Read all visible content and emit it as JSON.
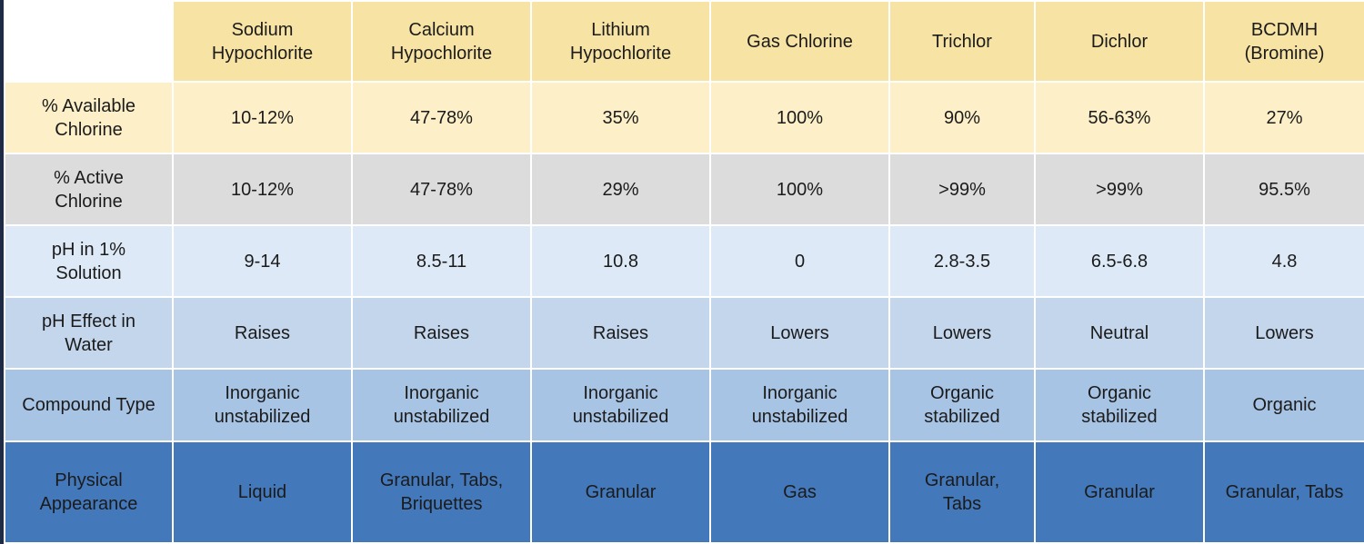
{
  "table": {
    "columns": [
      [
        "Sodium",
        "Hypochlorite"
      ],
      [
        "Calcium",
        "Hypochlorite"
      ],
      [
        "Lithium",
        "Hypochlorite"
      ],
      [
        "Gas Chlorine"
      ],
      [
        "Trichlor"
      ],
      [
        "Dichlor"
      ],
      [
        "BCDMH",
        "(Bromine)"
      ]
    ],
    "rows": [
      {
        "label": [
          "% Available",
          "Chlorine"
        ],
        "cells": [
          [
            "10-12%"
          ],
          [
            "47-78%"
          ],
          [
            "35%"
          ],
          [
            "100%"
          ],
          [
            "90%"
          ],
          [
            "56-63%"
          ],
          [
            "27%"
          ]
        ]
      },
      {
        "label": [
          "% Active",
          "Chlorine"
        ],
        "cells": [
          [
            "10-12%"
          ],
          [
            "47-78%"
          ],
          [
            "29%"
          ],
          [
            "100%"
          ],
          [
            ">99%"
          ],
          [
            ">99%"
          ],
          [
            "95.5%"
          ]
        ]
      },
      {
        "label": [
          "pH in 1%",
          "Solution"
        ],
        "cells": [
          [
            "9-14"
          ],
          [
            "8.5-11"
          ],
          [
            "10.8"
          ],
          [
            "0"
          ],
          [
            "2.8-3.5"
          ],
          [
            "6.5-6.8"
          ],
          [
            "4.8"
          ]
        ]
      },
      {
        "label": [
          "pH Effect in",
          "Water"
        ],
        "cells": [
          [
            "Raises"
          ],
          [
            "Raises"
          ],
          [
            "Raises"
          ],
          [
            "Lowers"
          ],
          [
            "Lowers"
          ],
          [
            "Neutral"
          ],
          [
            "Lowers"
          ]
        ]
      },
      {
        "label": [
          "Compound Type"
        ],
        "cells": [
          [
            "Inorganic",
            "unstabilized"
          ],
          [
            "Inorganic",
            "unstabilized"
          ],
          [
            "Inorganic",
            "unstabilized"
          ],
          [
            "Inorganic",
            "unstabilized"
          ],
          [
            "Organic",
            "stabilized"
          ],
          [
            "Organic",
            "stabilized"
          ],
          [
            "Organic"
          ]
        ]
      },
      {
        "label": [
          "Physical",
          "Appearance"
        ],
        "cells": [
          [
            "Liquid"
          ],
          [
            "Granular, Tabs,",
            "Briquettes"
          ],
          [
            "Granular"
          ],
          [
            "Gas"
          ],
          [
            "Granular,",
            "Tabs"
          ],
          [
            "Granular"
          ],
          [
            "Granular, Tabs"
          ]
        ]
      }
    ]
  }
}
